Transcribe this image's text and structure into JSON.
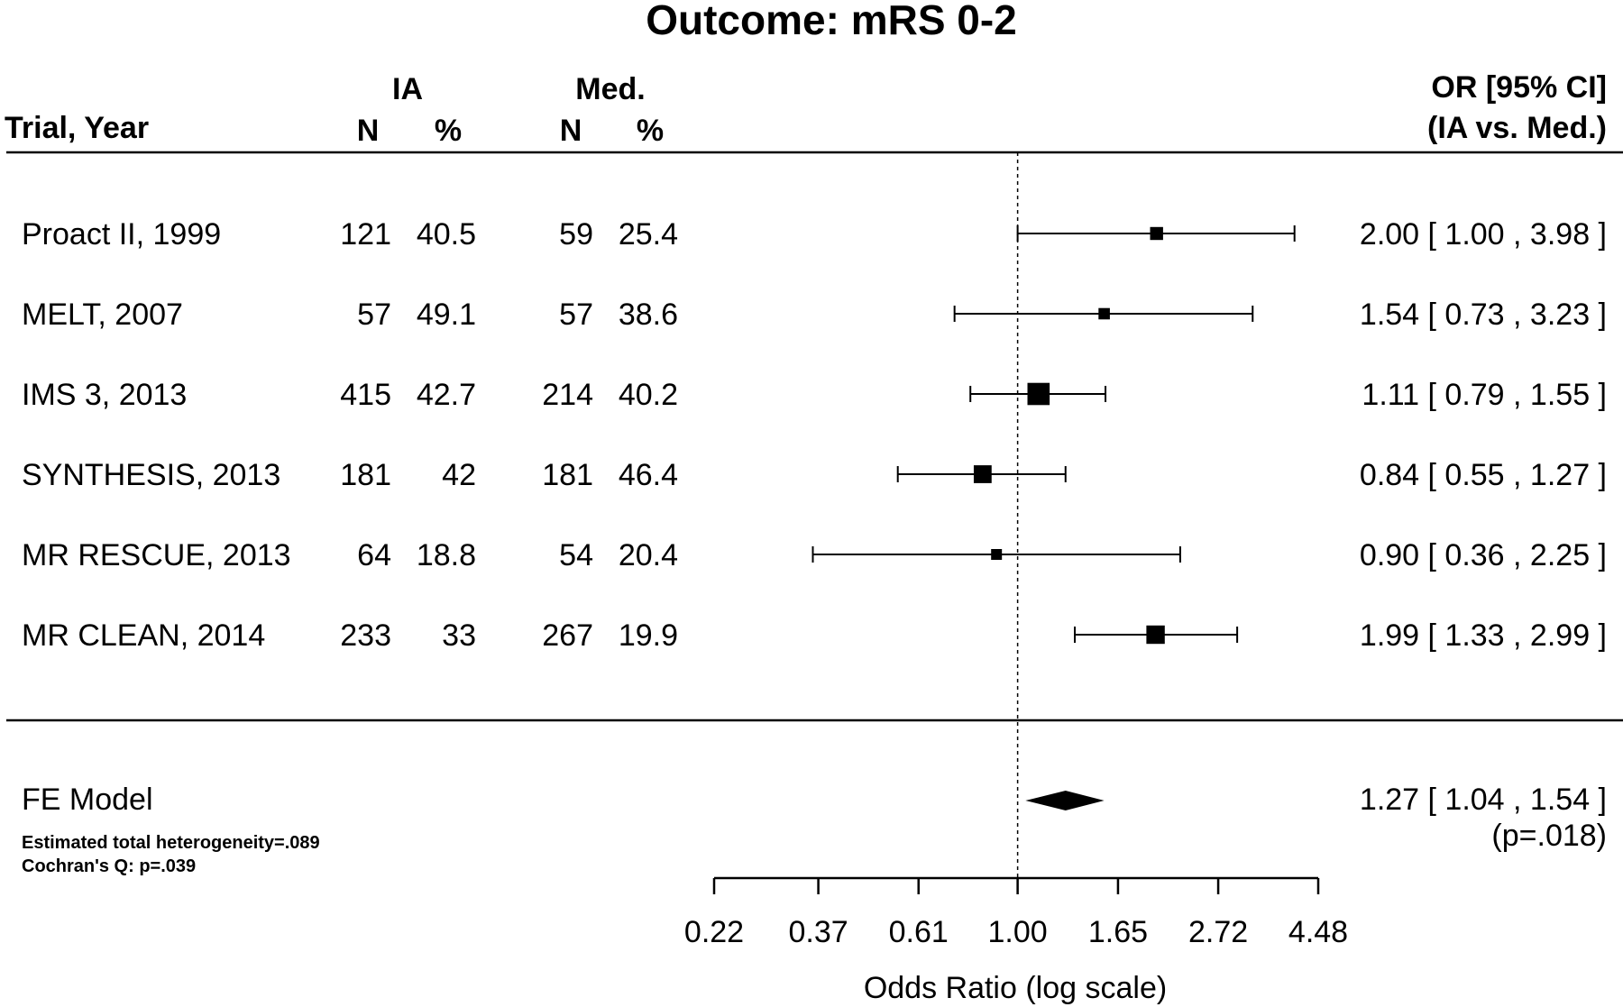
{
  "chart_data": {
    "type": "forest",
    "title": "Outcome: mRS 0-2",
    "headers": {
      "group1": "IA",
      "group2": "Med.",
      "trial": "Trial, Year",
      "n": "N",
      "pct": "%",
      "or_line1": "OR [95% CI]",
      "or_line2": "(IA vs. Med.)"
    },
    "studies": [
      {
        "label": "Proact II, 1999",
        "ia_n": "121",
        "ia_pct": "40.5",
        "med_n": "59",
        "med_pct": "25.4",
        "or": 2.0,
        "lo": 1.0,
        "hi": 3.98,
        "weight": 0.28,
        "ci_text": "2.00 [ 1.00 , 3.98 ]"
      },
      {
        "label": "MELT, 2007",
        "ia_n": "57",
        "ia_pct": "49.1",
        "med_n": "57",
        "med_pct": "38.6",
        "or": 1.54,
        "lo": 0.73,
        "hi": 3.23,
        "weight": 0.22,
        "ci_text": "1.54 [ 0.73 , 3.23 ]"
      },
      {
        "label": "IMS 3, 2013",
        "ia_n": "415",
        "ia_pct": "42.7",
        "med_n": "214",
        "med_pct": "40.2",
        "or": 1.11,
        "lo": 0.79,
        "hi": 1.55,
        "weight": 0.62,
        "ci_text": "1.11 [ 0.79 , 1.55 ]"
      },
      {
        "label": "SYNTHESIS, 2013",
        "ia_n": "181",
        "ia_pct": "42",
        "med_n": "181",
        "med_pct": "46.4",
        "or": 0.84,
        "lo": 0.55,
        "hi": 1.27,
        "weight": 0.46,
        "ci_text": "0.84 [ 0.55 , 1.27 ]"
      },
      {
        "label": "MR RESCUE, 2013",
        "ia_n": "64",
        "ia_pct": "18.8",
        "med_n": "54",
        "med_pct": "20.4",
        "or": 0.9,
        "lo": 0.36,
        "hi": 2.25,
        "weight": 0.2,
        "ci_text": "0.90 [ 0.36 , 2.25 ]"
      },
      {
        "label": "MR CLEAN, 2014",
        "ia_n": "233",
        "ia_pct": "33",
        "med_n": "267",
        "med_pct": "19.9",
        "or": 1.99,
        "lo": 1.33,
        "hi": 2.99,
        "weight": 0.48,
        "ci_text": "1.99 [ 1.33 , 2.99 ]"
      }
    ],
    "summary": {
      "label": "FE Model",
      "or": 1.27,
      "lo": 1.04,
      "hi": 1.54,
      "ci_text": "1.27 [ 1.04 , 1.54 ]",
      "p_text": "(p=.018)",
      "note1": "Estimated total heterogeneity=.089",
      "note2": "Cochran's Q: p=.039"
    },
    "xaxis": {
      "label": "Odds Ratio (log scale)",
      "scale": "log",
      "ticks": [
        0.22,
        0.37,
        0.61,
        1.0,
        1.65,
        2.72,
        4.48
      ],
      "tick_labels": [
        "0.22",
        "0.37",
        "0.61",
        "1.00",
        "1.65",
        "2.72",
        "4.48"
      ],
      "reference": 1.0,
      "reference_style": "dotted"
    }
  }
}
